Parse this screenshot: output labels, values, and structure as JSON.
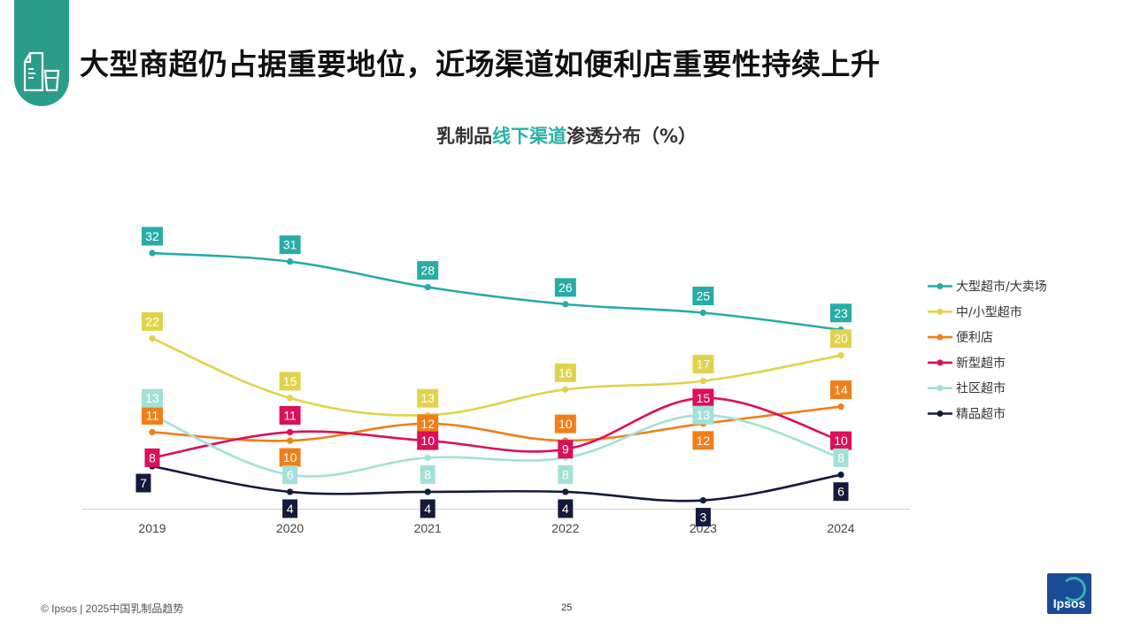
{
  "header": {
    "title": "大型商超仍占据重要地位，近场渠道如便利店重要性持续上升",
    "logo_icon": "milk-carton-glass-icon",
    "logo_color": "#2a9d8a"
  },
  "chart_title": {
    "part1": "乳制品",
    "highlight": "线下渠道",
    "part2": "渗透分布（%）",
    "highlight_color": "#2ab0a6"
  },
  "chart_data": {
    "type": "line",
    "title": "乳制品线下渠道渗透分布（%）",
    "xlabel": "",
    "ylabel": "",
    "ylim": [
      0,
      35
    ],
    "grid": false,
    "legend_position": "right",
    "categories": [
      "2019",
      "2020",
      "2021",
      "2022",
      "2023",
      "2024"
    ],
    "series": [
      {
        "name": "大型超市/大卖场",
        "color": "#27aca6",
        "values": [
          32,
          31,
          28,
          26,
          25,
          23
        ],
        "label_pos": [
          "above",
          "above",
          "above",
          "above",
          "above",
          "above"
        ]
      },
      {
        "name": "中/小型超市",
        "color": "#e0d34c",
        "values": [
          22,
          15,
          13,
          16,
          17,
          20
        ],
        "label_pos": [
          "above",
          "above",
          "above",
          "above",
          "above",
          "above"
        ]
      },
      {
        "name": "便利店",
        "color": "#f07f1a",
        "values": [
          11,
          10,
          12,
          10,
          12,
          14
        ],
        "label_pos": [
          "above",
          "below",
          "on",
          "above",
          "below",
          "above"
        ]
      },
      {
        "name": "新型超市",
        "color": "#dc0f5a",
        "values": [
          8,
          11,
          10,
          9,
          15,
          10
        ],
        "label_pos": [
          "on",
          "above",
          "on",
          "on",
          "on",
          "on"
        ]
      },
      {
        "name": "社区超市",
        "color": "#a2e1d6",
        "values": [
          13,
          6,
          8,
          8,
          13,
          8
        ],
        "label_pos": [
          "above",
          "on",
          "below",
          "below",
          "on",
          "on"
        ]
      },
      {
        "name": "精品超市",
        "color": "#141a3c",
        "values": [
          7,
          4,
          4,
          4,
          3,
          6
        ],
        "label_pos": [
          "below",
          "below",
          "below",
          "below",
          "below",
          "below"
        ]
      }
    ]
  },
  "footer": {
    "source": "© Ipsos | 2025中国乳制品趋势",
    "page_number": "25",
    "brand": "Ipsos",
    "brand_color": "#1a4b96"
  }
}
